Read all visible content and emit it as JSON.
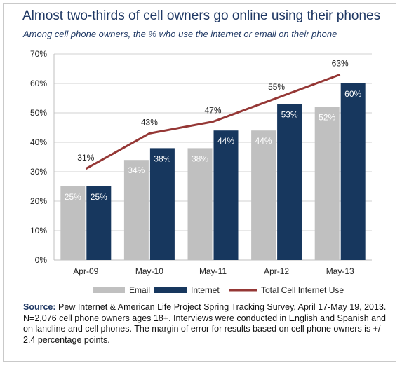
{
  "title": "Almost two-thirds of cell owners go online using their phones",
  "subtitle": "Among cell phone owners, the % who use the internet or email on their phone",
  "source_label": "Source:",
  "source_text": "Pew Internet & American Life Project Spring Tracking Survey, April 17-May 19, 2013. N=2,076 cell phone owners ages 18+.  Interviews were conducted in English and Spanish and on landline and cell phones.  The margin of error for results based on cell phone owners is +/- 2.4 percentage points.",
  "colors": {
    "email": "#c0c0c0",
    "internet": "#17375e",
    "total": "#953735",
    "title": "#1f3864"
  },
  "chart_data": {
    "type": "bar",
    "categories": [
      "Apr-09",
      "May-10",
      "May-11",
      "Apr-12",
      "May-13"
    ],
    "series": [
      {
        "name": "Email",
        "type": "bar",
        "values": [
          25,
          34,
          38,
          44,
          52
        ],
        "labels": [
          "25%",
          "34%",
          "38%",
          "44%",
          "52%"
        ]
      },
      {
        "name": "Internet",
        "type": "bar",
        "values": [
          25,
          38,
          44,
          53,
          60
        ],
        "labels": [
          "25%",
          "38%",
          "44%",
          "53%",
          "60%"
        ]
      },
      {
        "name": "Total Cell Internet Use",
        "type": "line",
        "values": [
          31,
          43,
          47,
          55,
          63
        ],
        "labels": [
          "31%",
          "43%",
          "47%",
          "55%",
          "63%"
        ]
      }
    ],
    "ylim": [
      0,
      70
    ],
    "yticks": [
      0,
      10,
      20,
      30,
      40,
      50,
      60,
      70
    ],
    "ytick_labels": [
      "0%",
      "10%",
      "20%",
      "30%",
      "40%",
      "50%",
      "60%",
      "70%"
    ],
    "grid": true,
    "legend_position": "bottom"
  }
}
